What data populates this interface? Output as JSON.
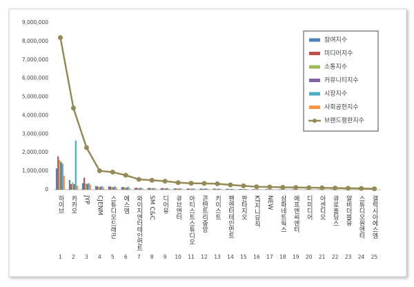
{
  "chart_data": {
    "type": "bar",
    "categories": [
      "하이브",
      "카카오",
      "JYP",
      "CJENM",
      "스튜디오드래곤",
      "에스엠",
      "와이지엔터테인먼트",
      "SM C&C",
      "디어유",
      "큐브엔터",
      "아티스트스튜디오",
      "콘텐트리중앙",
      "키이스트",
      "팬엔터테인먼트",
      "판타지오",
      "KT지니뮤직",
      "NEW",
      "삼화네트웍스",
      "에프엔씨엔터",
      "디미디어",
      "아센디오",
      "큐로홀딩스",
      "알비더블유",
      "스튜디오원엔터",
      "갤럭시아에스엠"
    ],
    "ranks": [
      1,
      2,
      3,
      4,
      5,
      6,
      7,
      8,
      9,
      10,
      11,
      12,
      13,
      14,
      15,
      16,
      17,
      18,
      19,
      20,
      21,
      22,
      23,
      24,
      25
    ],
    "ylim": [
      0,
      9000000
    ],
    "yticks": [
      {
        "value": 0,
        "label": "0"
      },
      {
        "value": 1000000,
        "label": "1,000,000"
      },
      {
        "value": 2000000,
        "label": "2,000,000"
      },
      {
        "value": 3000000,
        "label": "3,000,000"
      },
      {
        "value": 4000000,
        "label": "4,000,000"
      },
      {
        "value": 5000000,
        "label": "5,000,000"
      },
      {
        "value": 6000000,
        "label": "6,000,000"
      },
      {
        "value": 7000000,
        "label": "7,000,000"
      },
      {
        "value": 8000000,
        "label": "8,000,000"
      },
      {
        "value": 9000000,
        "label": "9,000,000"
      }
    ],
    "grid": false,
    "series": [
      {
        "name": "참여지수",
        "color": "#4f81bd",
        "values": [
          1150000,
          520000,
          350000,
          200000,
          180000,
          150000,
          100000,
          90000,
          80000,
          70000,
          60000,
          60000,
          60000,
          50000,
          40000,
          30000,
          30000,
          25000,
          20000,
          20000,
          20000,
          15000,
          15000,
          15000,
          10000
        ]
      },
      {
        "name": "미디어지수",
        "color": "#c0504d",
        "values": [
          1800000,
          300000,
          650000,
          180000,
          170000,
          140000,
          110000,
          100000,
          90000,
          70000,
          70000,
          60000,
          60000,
          50000,
          40000,
          30000,
          30000,
          25000,
          25000,
          20000,
          20000,
          20000,
          15000,
          15000,
          10000
        ]
      },
      {
        "name": "소통지수",
        "color": "#9bbb59",
        "values": [
          1600000,
          400000,
          330000,
          150000,
          150000,
          120000,
          80000,
          80000,
          70000,
          60000,
          50000,
          50000,
          50000,
          40000,
          30000,
          25000,
          20000,
          20000,
          20000,
          20000,
          15000,
          15000,
          15000,
          10000,
          10000
        ]
      },
      {
        "name": "커뮤니티지수",
        "color": "#8064a2",
        "values": [
          1500000,
          300000,
          320000,
          160000,
          140000,
          110000,
          90000,
          80000,
          70000,
          60000,
          60000,
          60000,
          50000,
          40000,
          30000,
          25000,
          20000,
          20000,
          20000,
          15000,
          15000,
          15000,
          10000,
          10000,
          5000
        ]
      },
      {
        "name": "시장지수",
        "color": "#4bacc6",
        "values": [
          1400000,
          2650000,
          350000,
          200000,
          190000,
          170000,
          120000,
          100000,
          100000,
          80000,
          70000,
          70000,
          60000,
          50000,
          40000,
          30000,
          30000,
          25000,
          20000,
          20000,
          20000,
          15000,
          15000,
          10000,
          10000
        ]
      },
      {
        "name": "사회공헌지수",
        "color": "#f79646",
        "values": [
          750000,
          230000,
          270000,
          130000,
          120000,
          90000,
          60000,
          60000,
          50000,
          40000,
          40000,
          40000,
          40000,
          30000,
          30000,
          20000,
          20000,
          15000,
          15000,
          15000,
          10000,
          10000,
          10000,
          10000,
          5000
        ]
      },
      {
        "name": "브랜드평판지수",
        "color": "#948a54",
        "type": "line",
        "values": [
          8200000,
          4400000,
          2270000,
          1020000,
          950000,
          780000,
          560000,
          510000,
          460000,
          380000,
          350000,
          340000,
          320000,
          260000,
          210000,
          160000,
          150000,
          130000,
          120000,
          110000,
          100000,
          90000,
          80000,
          70000,
          50000
        ]
      }
    ]
  }
}
